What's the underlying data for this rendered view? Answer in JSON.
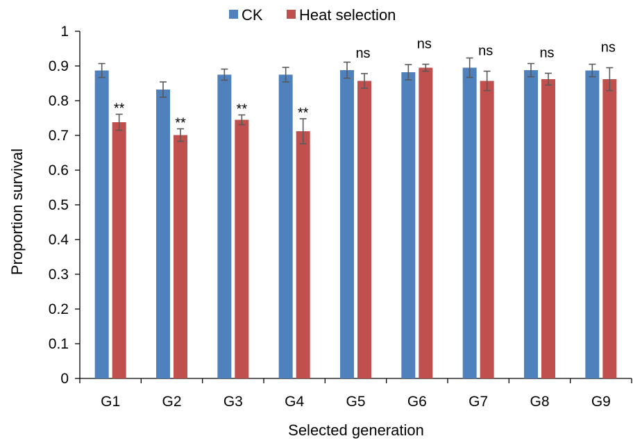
{
  "chart_data": {
    "type": "bar",
    "title": "",
    "xlabel": "Selected generation",
    "ylabel": "Proportion survival",
    "ylim": [
      0,
      1
    ],
    "yticks": [
      "0",
      "0.1",
      "0.2",
      "0.3",
      "0.4",
      "0.5",
      "0.6",
      "0.7",
      "0.8",
      "0.9",
      "1"
    ],
    "ytick_values": [
      0,
      0.1,
      0.2,
      0.3,
      0.4,
      0.5,
      0.6,
      0.7,
      0.8,
      0.9,
      1.0
    ],
    "grid": false,
    "legend_position": "top-center",
    "categories": [
      "G1",
      "G2",
      "G3",
      "G4",
      "G5",
      "G6",
      "G7",
      "G8",
      "G9"
    ],
    "series": [
      {
        "name": "CK",
        "color": "#4f81bd",
        "values": [
          0.887,
          0.832,
          0.875,
          0.875,
          0.888,
          0.882,
          0.895,
          0.888,
          0.887
        ],
        "errors": [
          0.02,
          0.022,
          0.016,
          0.021,
          0.023,
          0.022,
          0.028,
          0.019,
          0.018
        ]
      },
      {
        "name": "Heat selection",
        "color": "#c0504d",
        "values": [
          0.738,
          0.701,
          0.745,
          0.712,
          0.857,
          0.895,
          0.857,
          0.862,
          0.862
        ],
        "errors": [
          0.023,
          0.018,
          0.014,
          0.036,
          0.021,
          0.01,
          0.028,
          0.017,
          0.033
        ]
      }
    ],
    "annotations": [
      "**",
      "**",
      "**",
      "**",
      "ns",
      "ns",
      "ns",
      "ns",
      "ns"
    ]
  }
}
